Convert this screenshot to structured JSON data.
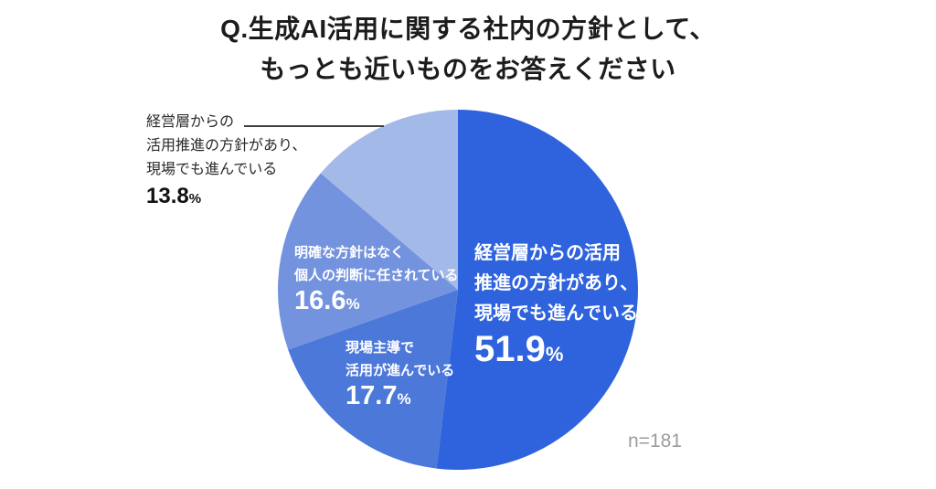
{
  "title": {
    "line1": "Q.生成AI活用に関する社内の方針として、",
    "line2": "もっとも近いものをお答えください"
  },
  "sample_size_label": "n=181",
  "percent_sign": "%",
  "chart_data": {
    "type": "pie",
    "title": "Q.生成AI活用に関する社内の方針として、もっとも近いものをお答えください",
    "unit": "%",
    "sample_size": 181,
    "direction": "clockwise",
    "start_angle_deg": 0,
    "legend_position": "none",
    "slices": [
      {
        "label": "経営層からの活用推進の方針があり、現場でも進んでいる",
        "value": 51.9,
        "color": "#2F63DD",
        "label_position": "inside",
        "label_lines": [
          "経営層からの活用",
          "推進の方針があり、",
          "現場でも進んでいる"
        ]
      },
      {
        "label": "現場主導で活用が進んでいる",
        "value": 17.7,
        "color": "#4C78D9",
        "label_position": "inside",
        "label_lines": [
          "現場主導で",
          "活用が進んでいる"
        ]
      },
      {
        "label": "明確な方針はなく個人の判断に任されている",
        "value": 16.6,
        "color": "#7493DE",
        "label_position": "inside",
        "label_lines": [
          "明確な方針はなく",
          "個人の判断に任されている"
        ]
      },
      {
        "label": "経営層からの活用推進の方針があり、現場でも進んでいる",
        "value": 13.8,
        "color": "#A3B9E8",
        "label_position": "outside-left",
        "label_lines": [
          "経営層からの",
          "活用推進の方針があり、",
          "現場でも進んでいる"
        ]
      }
    ]
  }
}
